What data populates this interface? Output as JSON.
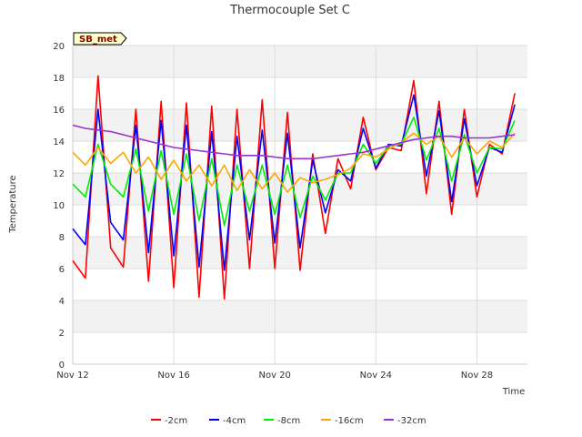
{
  "chart_data": {
    "type": "line",
    "title": "Thermocouple Set C",
    "xlabel": "Time",
    "ylabel": "Temperature",
    "badge": "SB_met",
    "ylim": [
      0,
      20
    ],
    "yticks": [
      0,
      2,
      4,
      6,
      8,
      10,
      12,
      14,
      16,
      18,
      20
    ],
    "xlim": [
      "Nov 12",
      "Nov 30"
    ],
    "xticks": [
      "Nov 12",
      "Nov 16",
      "Nov 20",
      "Nov 24",
      "Nov 28"
    ],
    "grid": true,
    "legend_position": "bottom",
    "x": [
      "Nov 12",
      "Nov 12.5",
      "Nov 13",
      "Nov 13.5",
      "Nov 14",
      "Nov 14.5",
      "Nov 15",
      "Nov 15.5",
      "Nov 16",
      "Nov 16.5",
      "Nov 17",
      "Nov 17.5",
      "Nov 18",
      "Nov 18.5",
      "Nov 19",
      "Nov 19.5",
      "Nov 20",
      "Nov 20.5",
      "Nov 21",
      "Nov 21.5",
      "Nov 22",
      "Nov 22.5",
      "Nov 23",
      "Nov 23.5",
      "Nov 24",
      "Nov 24.5",
      "Nov 25",
      "Nov 25.5",
      "Nov 26",
      "Nov 26.5",
      "Nov 27",
      "Nov 27.5",
      "Nov 28",
      "Nov 28.5",
      "Nov 29",
      "Nov 29.5"
    ],
    "series": [
      {
        "name": "-2cm",
        "color": "#ff0000",
        "values": [
          6.5,
          5.4,
          18.1,
          7.3,
          6.1,
          16.0,
          5.2,
          16.5,
          4.8,
          16.4,
          4.2,
          16.2,
          4.1,
          16.0,
          6.0,
          16.6,
          6.0,
          15.8,
          5.9,
          13.2,
          8.2,
          12.9,
          11.0,
          15.5,
          12.2,
          13.6,
          13.4,
          17.8,
          10.7,
          16.5,
          9.4,
          16.0,
          10.5,
          13.8,
          13.2,
          17.0
        ]
      },
      {
        "name": "-4cm",
        "color": "#0000ff",
        "values": [
          8.5,
          7.5,
          16.0,
          8.9,
          7.8,
          15.0,
          7.0,
          15.3,
          6.8,
          15.0,
          6.1,
          14.6,
          5.9,
          14.3,
          7.8,
          14.7,
          7.6,
          14.5,
          7.3,
          12.8,
          9.5,
          12.2,
          11.5,
          14.8,
          12.3,
          13.8,
          13.7,
          16.9,
          11.8,
          15.9,
          10.2,
          15.4,
          11.2,
          13.6,
          13.3,
          16.3
        ]
      },
      {
        "name": "-8cm",
        "color": "#00ee00",
        "values": [
          11.3,
          10.5,
          13.8,
          11.3,
          10.5,
          13.5,
          9.6,
          13.4,
          9.4,
          13.2,
          9.0,
          12.9,
          8.7,
          12.5,
          9.6,
          12.5,
          9.4,
          12.5,
          9.2,
          11.8,
          10.3,
          12.0,
          12.0,
          13.8,
          12.6,
          13.7,
          13.8,
          15.5,
          12.8,
          14.8,
          11.5,
          14.4,
          12.0,
          13.6,
          13.5,
          15.3
        ]
      },
      {
        "name": "-16cm",
        "color": "#ffa500",
        "values": [
          13.3,
          12.5,
          13.6,
          12.6,
          13.3,
          12.0,
          13.0,
          11.6,
          12.8,
          11.5,
          12.5,
          11.2,
          12.5,
          10.9,
          12.2,
          11.0,
          12.0,
          10.8,
          11.7,
          11.4,
          11.6,
          11.9,
          12.3,
          13.2,
          13.0,
          13.5,
          13.9,
          14.5,
          13.8,
          14.3,
          13.0,
          14.2,
          13.2,
          14.0,
          13.6,
          14.5
        ]
      },
      {
        "name": "-32cm",
        "color": "#9932cc",
        "values": [
          15.0,
          14.8,
          14.7,
          14.6,
          14.4,
          14.2,
          14.0,
          13.8,
          13.6,
          13.5,
          13.4,
          13.3,
          13.2,
          13.1,
          13.1,
          13.1,
          13.0,
          12.9,
          12.9,
          12.9,
          13.0,
          13.1,
          13.2,
          13.3,
          13.5,
          13.7,
          13.9,
          14.1,
          14.2,
          14.3,
          14.3,
          14.2,
          14.2,
          14.2,
          14.3,
          14.4
        ]
      }
    ]
  }
}
